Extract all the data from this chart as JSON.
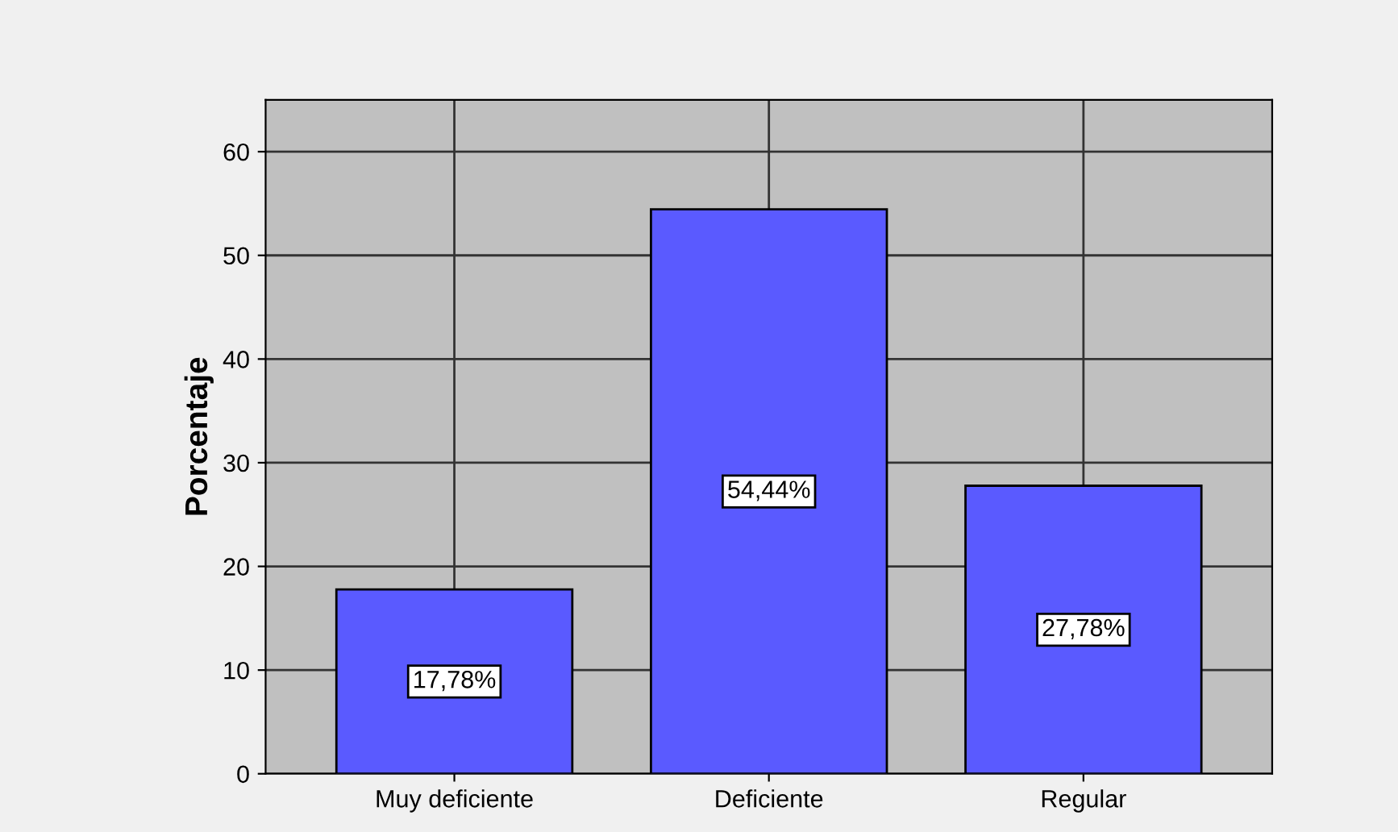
{
  "chart_data": {
    "type": "bar",
    "ylabel": "Porcentaje",
    "categories": [
      "Muy deficiente",
      "Deficiente",
      "Regular"
    ],
    "values": [
      17.78,
      54.44,
      27.78
    ],
    "value_labels": [
      "17,78%",
      "54,44%",
      "27,78%"
    ],
    "color": "#5a5aff",
    "ylim": [
      0,
      65
    ],
    "yticks": [
      0,
      10,
      20,
      30,
      40,
      50,
      60
    ],
    "grid": true
  }
}
